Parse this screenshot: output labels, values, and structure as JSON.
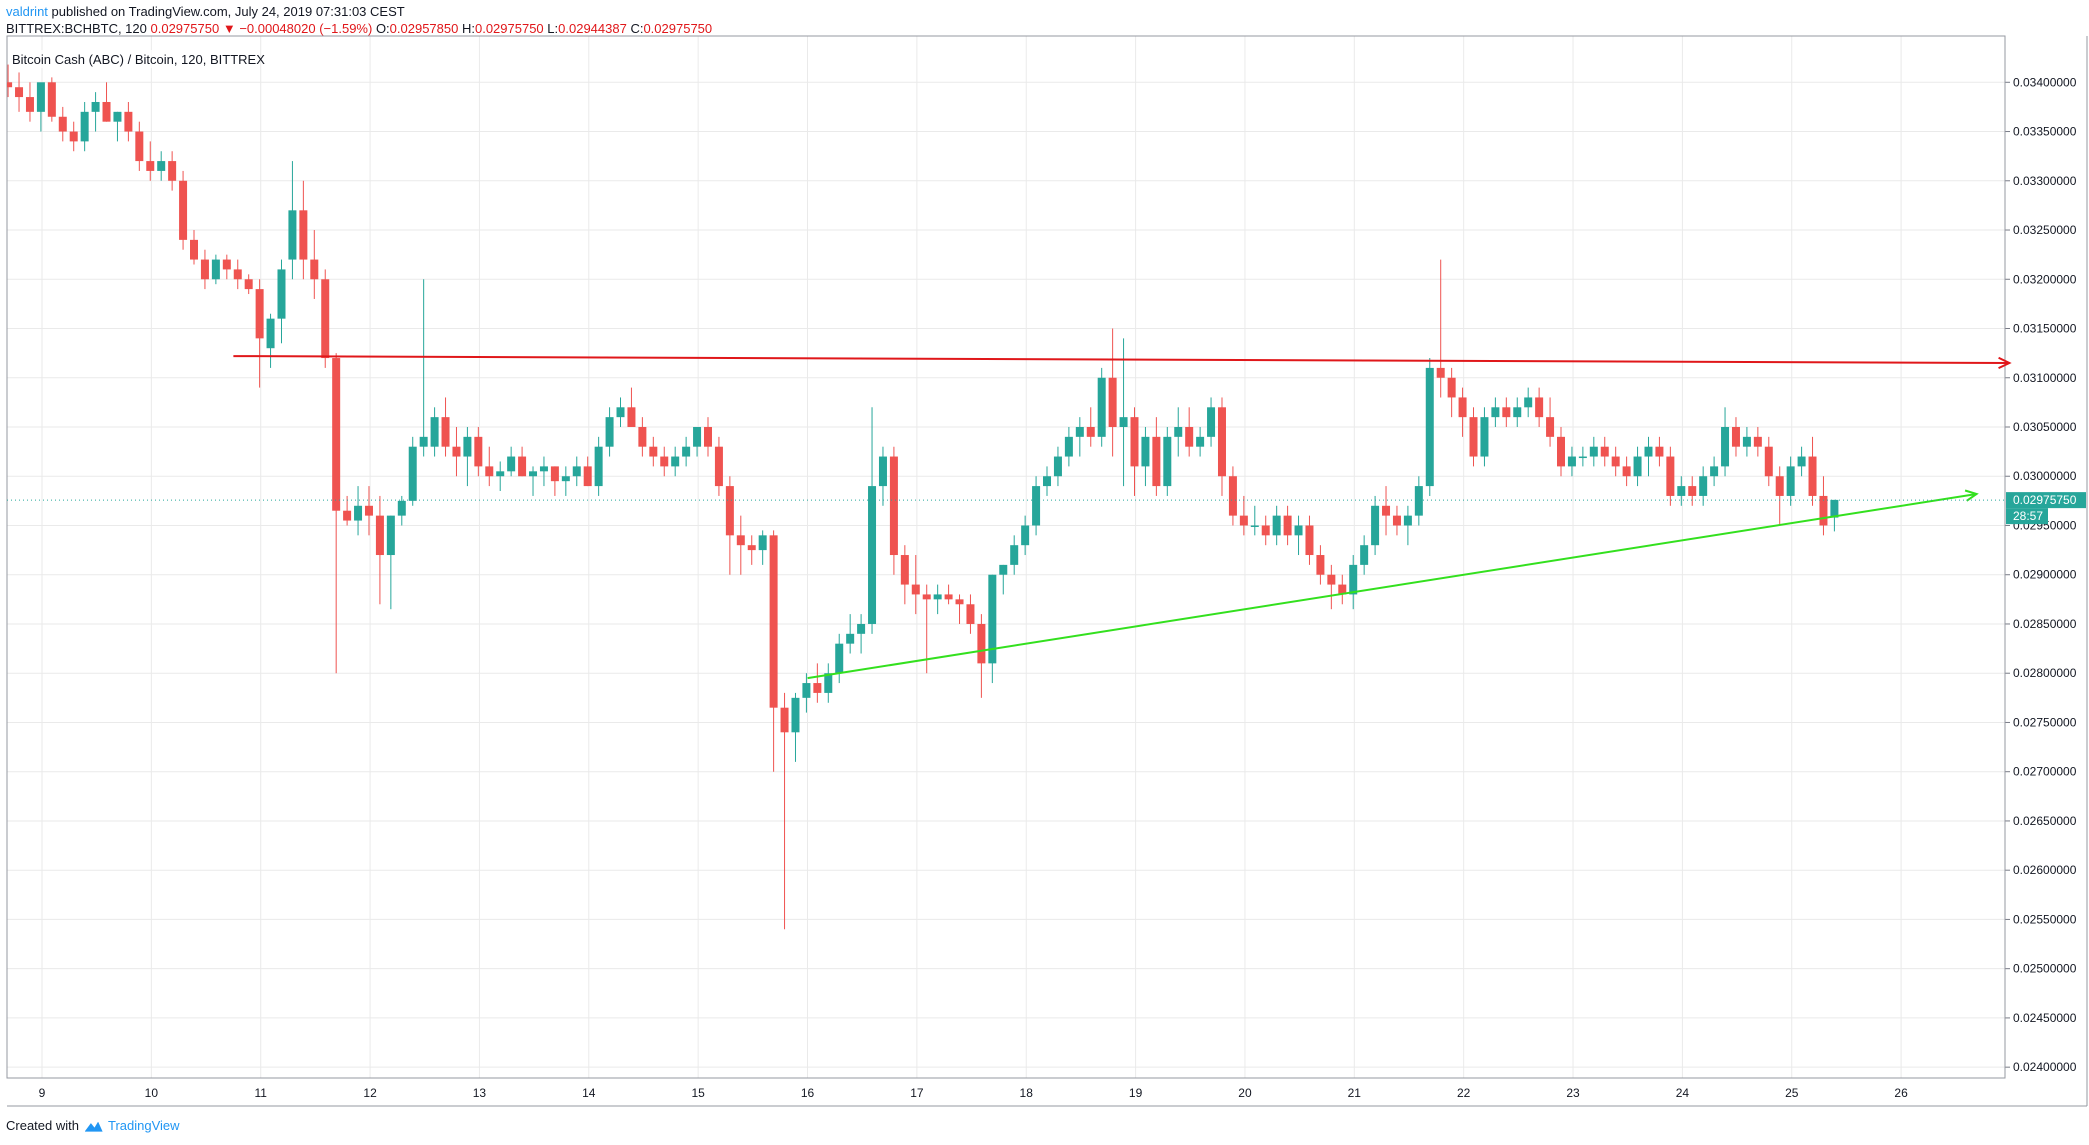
{
  "header": {
    "author": "valdrint",
    "published": "published on TradingView.com, July 24, 2019 07:31:03 CEST",
    "symbol": "BITTREX:BCHBTC, 120",
    "last": "0.02975750",
    "change_arrow": "▼",
    "change": "−0.00048020 (−1.59%)",
    "o_label": "O:",
    "o_value": "0.02957850",
    "h_label": "H:",
    "h_value": "0.02975750",
    "l_label": "L:",
    "l_value": "0.02944387",
    "c_label": "C:",
    "c_value": "0.02975750"
  },
  "footer": {
    "created_with": "Created with",
    "brand": "TradingView"
  },
  "colors": {
    "up": "#26a69a",
    "down": "#ef5350",
    "grid": "#eaeaea",
    "resistance": "#e0171a",
    "support": "#33e01e",
    "price_line": "#26a69a"
  },
  "chart_data": {
    "type": "candlestick",
    "title": "Bitcoin Cash (ABC) / Bitcoin, 120, BITTREX",
    "xlabel": "",
    "ylabel": "",
    "x_ticks": [
      "9",
      "10",
      "11",
      "12",
      "13",
      "14",
      "15",
      "16",
      "17",
      "18",
      "19",
      "20",
      "21",
      "22",
      "23",
      "24",
      "25",
      "26"
    ],
    "x_tick_days": [
      9,
      10,
      11,
      12,
      13,
      14,
      15,
      16,
      17,
      18,
      19,
      20,
      21,
      22,
      23,
      24,
      25,
      26
    ],
    "xlim": [
      8.68,
      26.95
    ],
    "ylim": [
      0.02389,
      0.03447
    ],
    "y_ticks": [
      "0.03400000",
      "0.03350000",
      "0.03300000",
      "0.03250000",
      "0.03200000",
      "0.03150000",
      "0.03100000",
      "0.03050000",
      "0.03000000",
      "0.02950000",
      "0.02900000",
      "0.02850000",
      "0.02800000",
      "0.02750000",
      "0.02700000",
      "0.02650000",
      "0.02600000",
      "0.02550000",
      "0.02500000",
      "0.02450000",
      "0.02400000"
    ],
    "last_price": 0.0297575,
    "last_price_label": "0.02975750",
    "countdown_label": "28:57",
    "grid": true,
    "candles": [
      [
        8.6,
        0.0342,
        0.03445,
        0.0339,
        0.034
      ],
      [
        8.69,
        0.034,
        0.03418,
        0.03385,
        0.03395
      ],
      [
        8.79,
        0.03395,
        0.0341,
        0.0337,
        0.03385
      ],
      [
        8.89,
        0.03385,
        0.034,
        0.0336,
        0.0337
      ],
      [
        8.99,
        0.0337,
        0.03395,
        0.0335,
        0.034
      ],
      [
        9.09,
        0.034,
        0.03405,
        0.0336,
        0.03365
      ],
      [
        9.19,
        0.03365,
        0.03375,
        0.0334,
        0.0335
      ],
      [
        9.29,
        0.0335,
        0.0336,
        0.0333,
        0.0334
      ],
      [
        9.39,
        0.0334,
        0.0338,
        0.0333,
        0.0337
      ],
      [
        9.49,
        0.0337,
        0.0339,
        0.0335,
        0.0338
      ],
      [
        9.59,
        0.0338,
        0.034,
        0.0336,
        0.0336
      ],
      [
        9.69,
        0.0336,
        0.0337,
        0.0334,
        0.0337
      ],
      [
        9.79,
        0.0337,
        0.0338,
        0.0334,
        0.0335
      ],
      [
        9.89,
        0.0335,
        0.0336,
        0.0331,
        0.0332
      ],
      [
        9.99,
        0.0332,
        0.0334,
        0.033,
        0.0331
      ],
      [
        10.09,
        0.0331,
        0.0333,
        0.033,
        0.0332
      ],
      [
        10.19,
        0.0332,
        0.0333,
        0.0329,
        0.033
      ],
      [
        10.29,
        0.033,
        0.0331,
        0.0323,
        0.0324
      ],
      [
        10.39,
        0.0324,
        0.0325,
        0.03215,
        0.0322
      ],
      [
        10.49,
        0.0322,
        0.0323,
        0.0319,
        0.032
      ],
      [
        10.59,
        0.032,
        0.03225,
        0.03195,
        0.0322
      ],
      [
        10.69,
        0.0322,
        0.03225,
        0.032,
        0.0321
      ],
      [
        10.79,
        0.0321,
        0.0322,
        0.0319,
        0.032
      ],
      [
        10.89,
        0.032,
        0.03205,
        0.03185,
        0.0319
      ],
      [
        10.99,
        0.0319,
        0.032,
        0.0309,
        0.0314
      ],
      [
        11.09,
        0.0313,
        0.03165,
        0.0311,
        0.0316
      ],
      [
        11.19,
        0.0316,
        0.0322,
        0.03135,
        0.0321
      ],
      [
        11.29,
        0.0322,
        0.0332,
        0.032,
        0.0327
      ],
      [
        11.39,
        0.0327,
        0.033,
        0.032,
        0.0322
      ],
      [
        11.49,
        0.0322,
        0.0325,
        0.0318,
        0.032
      ],
      [
        11.59,
        0.032,
        0.0321,
        0.0311,
        0.0312
      ],
      [
        11.69,
        0.0312,
        0.03125,
        0.028,
        0.02965
      ],
      [
        11.79,
        0.02965,
        0.0298,
        0.0295,
        0.02955
      ],
      [
        11.89,
        0.02955,
        0.0299,
        0.0294,
        0.0297
      ],
      [
        11.99,
        0.0297,
        0.0299,
        0.0294,
        0.0296
      ],
      [
        12.09,
        0.0296,
        0.0298,
        0.0287,
        0.0292
      ],
      [
        12.19,
        0.0292,
        0.0296,
        0.02865,
        0.0296
      ],
      [
        12.29,
        0.0296,
        0.0298,
        0.0295,
        0.02975
      ],
      [
        12.39,
        0.02975,
        0.0304,
        0.0297,
        0.0303
      ],
      [
        12.49,
        0.0303,
        0.032,
        0.0302,
        0.0304
      ],
      [
        12.59,
        0.0303,
        0.0307,
        0.0302,
        0.0306
      ],
      [
        12.69,
        0.0306,
        0.0308,
        0.0302,
        0.0303
      ],
      [
        12.79,
        0.0303,
        0.0305,
        0.03,
        0.0302
      ],
      [
        12.89,
        0.0302,
        0.0305,
        0.0299,
        0.0304
      ],
      [
        12.99,
        0.0304,
        0.0305,
        0.03,
        0.0301
      ],
      [
        13.09,
        0.0301,
        0.0303,
        0.0299,
        0.03
      ],
      [
        13.19,
        0.03,
        0.03015,
        0.02985,
        0.03005
      ],
      [
        13.29,
        0.03005,
        0.0303,
        0.03,
        0.0302
      ],
      [
        13.39,
        0.0302,
        0.0303,
        0.03,
        0.03
      ],
      [
        13.49,
        0.03,
        0.0301,
        0.0298,
        0.03005
      ],
      [
        13.59,
        0.03005,
        0.0302,
        0.0299,
        0.0301
      ],
      [
        13.69,
        0.0301,
        0.0301,
        0.0298,
        0.02995
      ],
      [
        13.79,
        0.02995,
        0.0301,
        0.0298,
        0.03
      ],
      [
        13.89,
        0.03,
        0.0302,
        0.0299,
        0.0301
      ],
      [
        13.99,
        0.0301,
        0.0302,
        0.0299,
        0.0299
      ],
      [
        14.09,
        0.0299,
        0.0304,
        0.0298,
        0.0303
      ],
      [
        14.19,
        0.0303,
        0.0307,
        0.0302,
        0.0306
      ],
      [
        14.29,
        0.0306,
        0.0308,
        0.0305,
        0.0307
      ],
      [
        14.39,
        0.0307,
        0.0309,
        0.0305,
        0.0305
      ],
      [
        14.49,
        0.0305,
        0.0306,
        0.0302,
        0.0303
      ],
      [
        14.59,
        0.0303,
        0.0304,
        0.0301,
        0.0302
      ],
      [
        14.69,
        0.0302,
        0.0303,
        0.03,
        0.0301
      ],
      [
        14.79,
        0.0301,
        0.0303,
        0.03,
        0.0302
      ],
      [
        14.89,
        0.0302,
        0.0304,
        0.0301,
        0.0303
      ],
      [
        14.99,
        0.0303,
        0.0305,
        0.0302,
        0.0305
      ],
      [
        15.09,
        0.0305,
        0.0306,
        0.0302,
        0.0303
      ],
      [
        15.19,
        0.0303,
        0.0304,
        0.0298,
        0.0299
      ],
      [
        15.29,
        0.0299,
        0.03,
        0.029,
        0.0294
      ],
      [
        15.39,
        0.0294,
        0.0296,
        0.029,
        0.0293
      ],
      [
        15.49,
        0.0293,
        0.0294,
        0.0291,
        0.02925
      ],
      [
        15.59,
        0.02925,
        0.02945,
        0.0291,
        0.0294
      ],
      [
        15.69,
        0.0294,
        0.02945,
        0.027,
        0.02765
      ],
      [
        15.79,
        0.02765,
        0.0278,
        0.0254,
        0.0274
      ],
      [
        15.89,
        0.0274,
        0.0278,
        0.0271,
        0.02775
      ],
      [
        15.99,
        0.02775,
        0.028,
        0.0276,
        0.0279
      ],
      [
        16.09,
        0.0279,
        0.0281,
        0.0277,
        0.0278
      ],
      [
        16.19,
        0.0278,
        0.0281,
        0.0277,
        0.028
      ],
      [
        16.29,
        0.028,
        0.0284,
        0.0279,
        0.0283
      ],
      [
        16.39,
        0.0283,
        0.0286,
        0.0282,
        0.0284
      ],
      [
        16.49,
        0.0284,
        0.0286,
        0.0282,
        0.0285
      ],
      [
        16.59,
        0.0285,
        0.0307,
        0.0284,
        0.0299
      ],
      [
        16.69,
        0.0299,
        0.0303,
        0.0297,
        0.0302
      ],
      [
        16.79,
        0.0302,
        0.0303,
        0.029,
        0.0292
      ],
      [
        16.89,
        0.0292,
        0.0293,
        0.0287,
        0.0289
      ],
      [
        16.99,
        0.0289,
        0.0292,
        0.0286,
        0.0288
      ],
      [
        17.09,
        0.0288,
        0.0289,
        0.028,
        0.02875
      ],
      [
        17.19,
        0.02875,
        0.0289,
        0.0286,
        0.0288
      ],
      [
        17.29,
        0.0288,
        0.0289,
        0.0287,
        0.02875
      ],
      [
        17.39,
        0.02875,
        0.0288,
        0.0285,
        0.0287
      ],
      [
        17.49,
        0.0287,
        0.0288,
        0.0284,
        0.0285
      ],
      [
        17.59,
        0.0285,
        0.0286,
        0.02775,
        0.0281
      ],
      [
        17.69,
        0.0281,
        0.029,
        0.0279,
        0.029
      ],
      [
        17.79,
        0.029,
        0.0291,
        0.0288,
        0.0291
      ],
      [
        17.89,
        0.0291,
        0.0294,
        0.029,
        0.0293
      ],
      [
        17.99,
        0.0293,
        0.0296,
        0.0292,
        0.0295
      ],
      [
        18.09,
        0.0295,
        0.03,
        0.0294,
        0.0299
      ],
      [
        18.19,
        0.0299,
        0.0301,
        0.0298,
        0.03
      ],
      [
        18.29,
        0.03,
        0.0303,
        0.0299,
        0.0302
      ],
      [
        18.39,
        0.0302,
        0.0305,
        0.0301,
        0.0304
      ],
      [
        18.49,
        0.0304,
        0.0306,
        0.0302,
        0.0305
      ],
      [
        18.59,
        0.0305,
        0.0307,
        0.0303,
        0.0304
      ],
      [
        18.69,
        0.0304,
        0.0311,
        0.0303,
        0.031
      ],
      [
        18.79,
        0.031,
        0.0315,
        0.0302,
        0.0305
      ],
      [
        18.89,
        0.0305,
        0.0314,
        0.0299,
        0.0306
      ],
      [
        18.99,
        0.0306,
        0.0307,
        0.0298,
        0.0301
      ],
      [
        19.09,
        0.0301,
        0.0305,
        0.0299,
        0.0304
      ],
      [
        19.19,
        0.0304,
        0.0306,
        0.0298,
        0.0299
      ],
      [
        19.29,
        0.0299,
        0.0305,
        0.0298,
        0.0304
      ],
      [
        19.39,
        0.0304,
        0.0307,
        0.0302,
        0.0305
      ],
      [
        19.49,
        0.0305,
        0.0307,
        0.0302,
        0.0303
      ],
      [
        19.59,
        0.0303,
        0.0305,
        0.0302,
        0.0304
      ],
      [
        19.69,
        0.0304,
        0.0308,
        0.0303,
        0.0307
      ],
      [
        19.79,
        0.0307,
        0.0308,
        0.0298,
        0.03
      ],
      [
        19.89,
        0.03,
        0.0301,
        0.0295,
        0.0296
      ],
      [
        19.99,
        0.0296,
        0.0298,
        0.0294,
        0.0295
      ],
      [
        20.09,
        0.0295,
        0.0297,
        0.0294,
        0.0295
      ],
      [
        20.19,
        0.0295,
        0.0296,
        0.0293,
        0.0294
      ],
      [
        20.29,
        0.0294,
        0.0297,
        0.0293,
        0.0296
      ],
      [
        20.39,
        0.0296,
        0.0297,
        0.0293,
        0.0294
      ],
      [
        20.49,
        0.0294,
        0.0296,
        0.0292,
        0.0295
      ],
      [
        20.59,
        0.0295,
        0.0296,
        0.0291,
        0.0292
      ],
      [
        20.69,
        0.0292,
        0.0293,
        0.0289,
        0.029
      ],
      [
        20.79,
        0.029,
        0.0291,
        0.02865,
        0.0289
      ],
      [
        20.89,
        0.0289,
        0.029,
        0.0287,
        0.0288
      ],
      [
        20.99,
        0.0288,
        0.0292,
        0.02865,
        0.0291
      ],
      [
        21.09,
        0.0291,
        0.0294,
        0.029,
        0.0293
      ],
      [
        21.19,
        0.0293,
        0.0298,
        0.0292,
        0.0297
      ],
      [
        21.29,
        0.0297,
        0.0299,
        0.0294,
        0.0296
      ],
      [
        21.39,
        0.0296,
        0.0297,
        0.0294,
        0.0295
      ],
      [
        21.49,
        0.0295,
        0.0297,
        0.0293,
        0.0296
      ],
      [
        21.59,
        0.0296,
        0.03,
        0.0295,
        0.0299
      ],
      [
        21.69,
        0.0299,
        0.0312,
        0.0298,
        0.0311
      ],
      [
        21.79,
        0.0311,
        0.0322,
        0.0308,
        0.031
      ],
      [
        21.89,
        0.031,
        0.0311,
        0.0306,
        0.0308
      ],
      [
        21.99,
        0.0308,
        0.0309,
        0.0304,
        0.0306
      ],
      [
        22.09,
        0.0306,
        0.0307,
        0.0301,
        0.0302
      ],
      [
        22.19,
        0.0302,
        0.0307,
        0.0301,
        0.0306
      ],
      [
        22.29,
        0.0306,
        0.0308,
        0.0305,
        0.0307
      ],
      [
        22.39,
        0.0307,
        0.0308,
        0.0305,
        0.0306
      ],
      [
        22.49,
        0.0306,
        0.0308,
        0.0305,
        0.0307
      ],
      [
        22.59,
        0.0307,
        0.0309,
        0.0306,
        0.0308
      ],
      [
        22.69,
        0.0308,
        0.0309,
        0.0305,
        0.0306
      ],
      [
        22.79,
        0.0306,
        0.0308,
        0.0303,
        0.0304
      ],
      [
        22.89,
        0.0304,
        0.0305,
        0.03,
        0.0301
      ],
      [
        22.99,
        0.0301,
        0.0303,
        0.03,
        0.0302
      ],
      [
        23.09,
        0.0302,
        0.0303,
        0.0301,
        0.0302
      ],
      [
        23.19,
        0.0302,
        0.0304,
        0.0301,
        0.0303
      ],
      [
        23.29,
        0.0303,
        0.0304,
        0.0301,
        0.0302
      ],
      [
        23.39,
        0.0302,
        0.0303,
        0.03,
        0.0301
      ],
      [
        23.49,
        0.0301,
        0.0302,
        0.0299,
        0.03
      ],
      [
        23.59,
        0.03,
        0.0303,
        0.0299,
        0.0302
      ],
      [
        23.69,
        0.0302,
        0.0304,
        0.03,
        0.0303
      ],
      [
        23.79,
        0.0303,
        0.0304,
        0.0301,
        0.0302
      ],
      [
        23.89,
        0.0302,
        0.0303,
        0.0297,
        0.0298
      ],
      [
        23.99,
        0.0298,
        0.03,
        0.0297,
        0.0299
      ],
      [
        24.09,
        0.0299,
        0.03,
        0.0297,
        0.0298
      ],
      [
        24.19,
        0.0298,
        0.0301,
        0.0297,
        0.03
      ],
      [
        24.29,
        0.03,
        0.0302,
        0.0299,
        0.0301
      ],
      [
        24.39,
        0.0301,
        0.0307,
        0.03,
        0.0305
      ],
      [
        24.49,
        0.0305,
        0.0306,
        0.0302,
        0.0303
      ],
      [
        24.59,
        0.0303,
        0.0305,
        0.0302,
        0.0304
      ],
      [
        24.69,
        0.0304,
        0.0305,
        0.0302,
        0.0303
      ],
      [
        24.79,
        0.0303,
        0.0304,
        0.0299,
        0.03
      ],
      [
        24.89,
        0.03,
        0.0301,
        0.0295,
        0.0298
      ],
      [
        24.99,
        0.0298,
        0.0302,
        0.0297,
        0.0301
      ],
      [
        25.09,
        0.0301,
        0.0303,
        0.03,
        0.0302
      ],
      [
        25.19,
        0.0302,
        0.0304,
        0.0297,
        0.0298
      ],
      [
        25.29,
        0.0298,
        0.03,
        0.0294,
        0.0295
      ],
      [
        25.39,
        0.02958,
        0.02976,
        0.02944,
        0.02976
      ]
    ],
    "trendlines": [
      {
        "name": "resistance",
        "x1": 10.75,
        "y1": 0.03122,
        "x2": 26.99,
        "y2": 0.03115,
        "arrow": true
      },
      {
        "name": "support",
        "x1": 16.0,
        "y1": 0.02795,
        "x2": 26.69,
        "y2": 0.02982,
        "arrow": true
      }
    ]
  }
}
